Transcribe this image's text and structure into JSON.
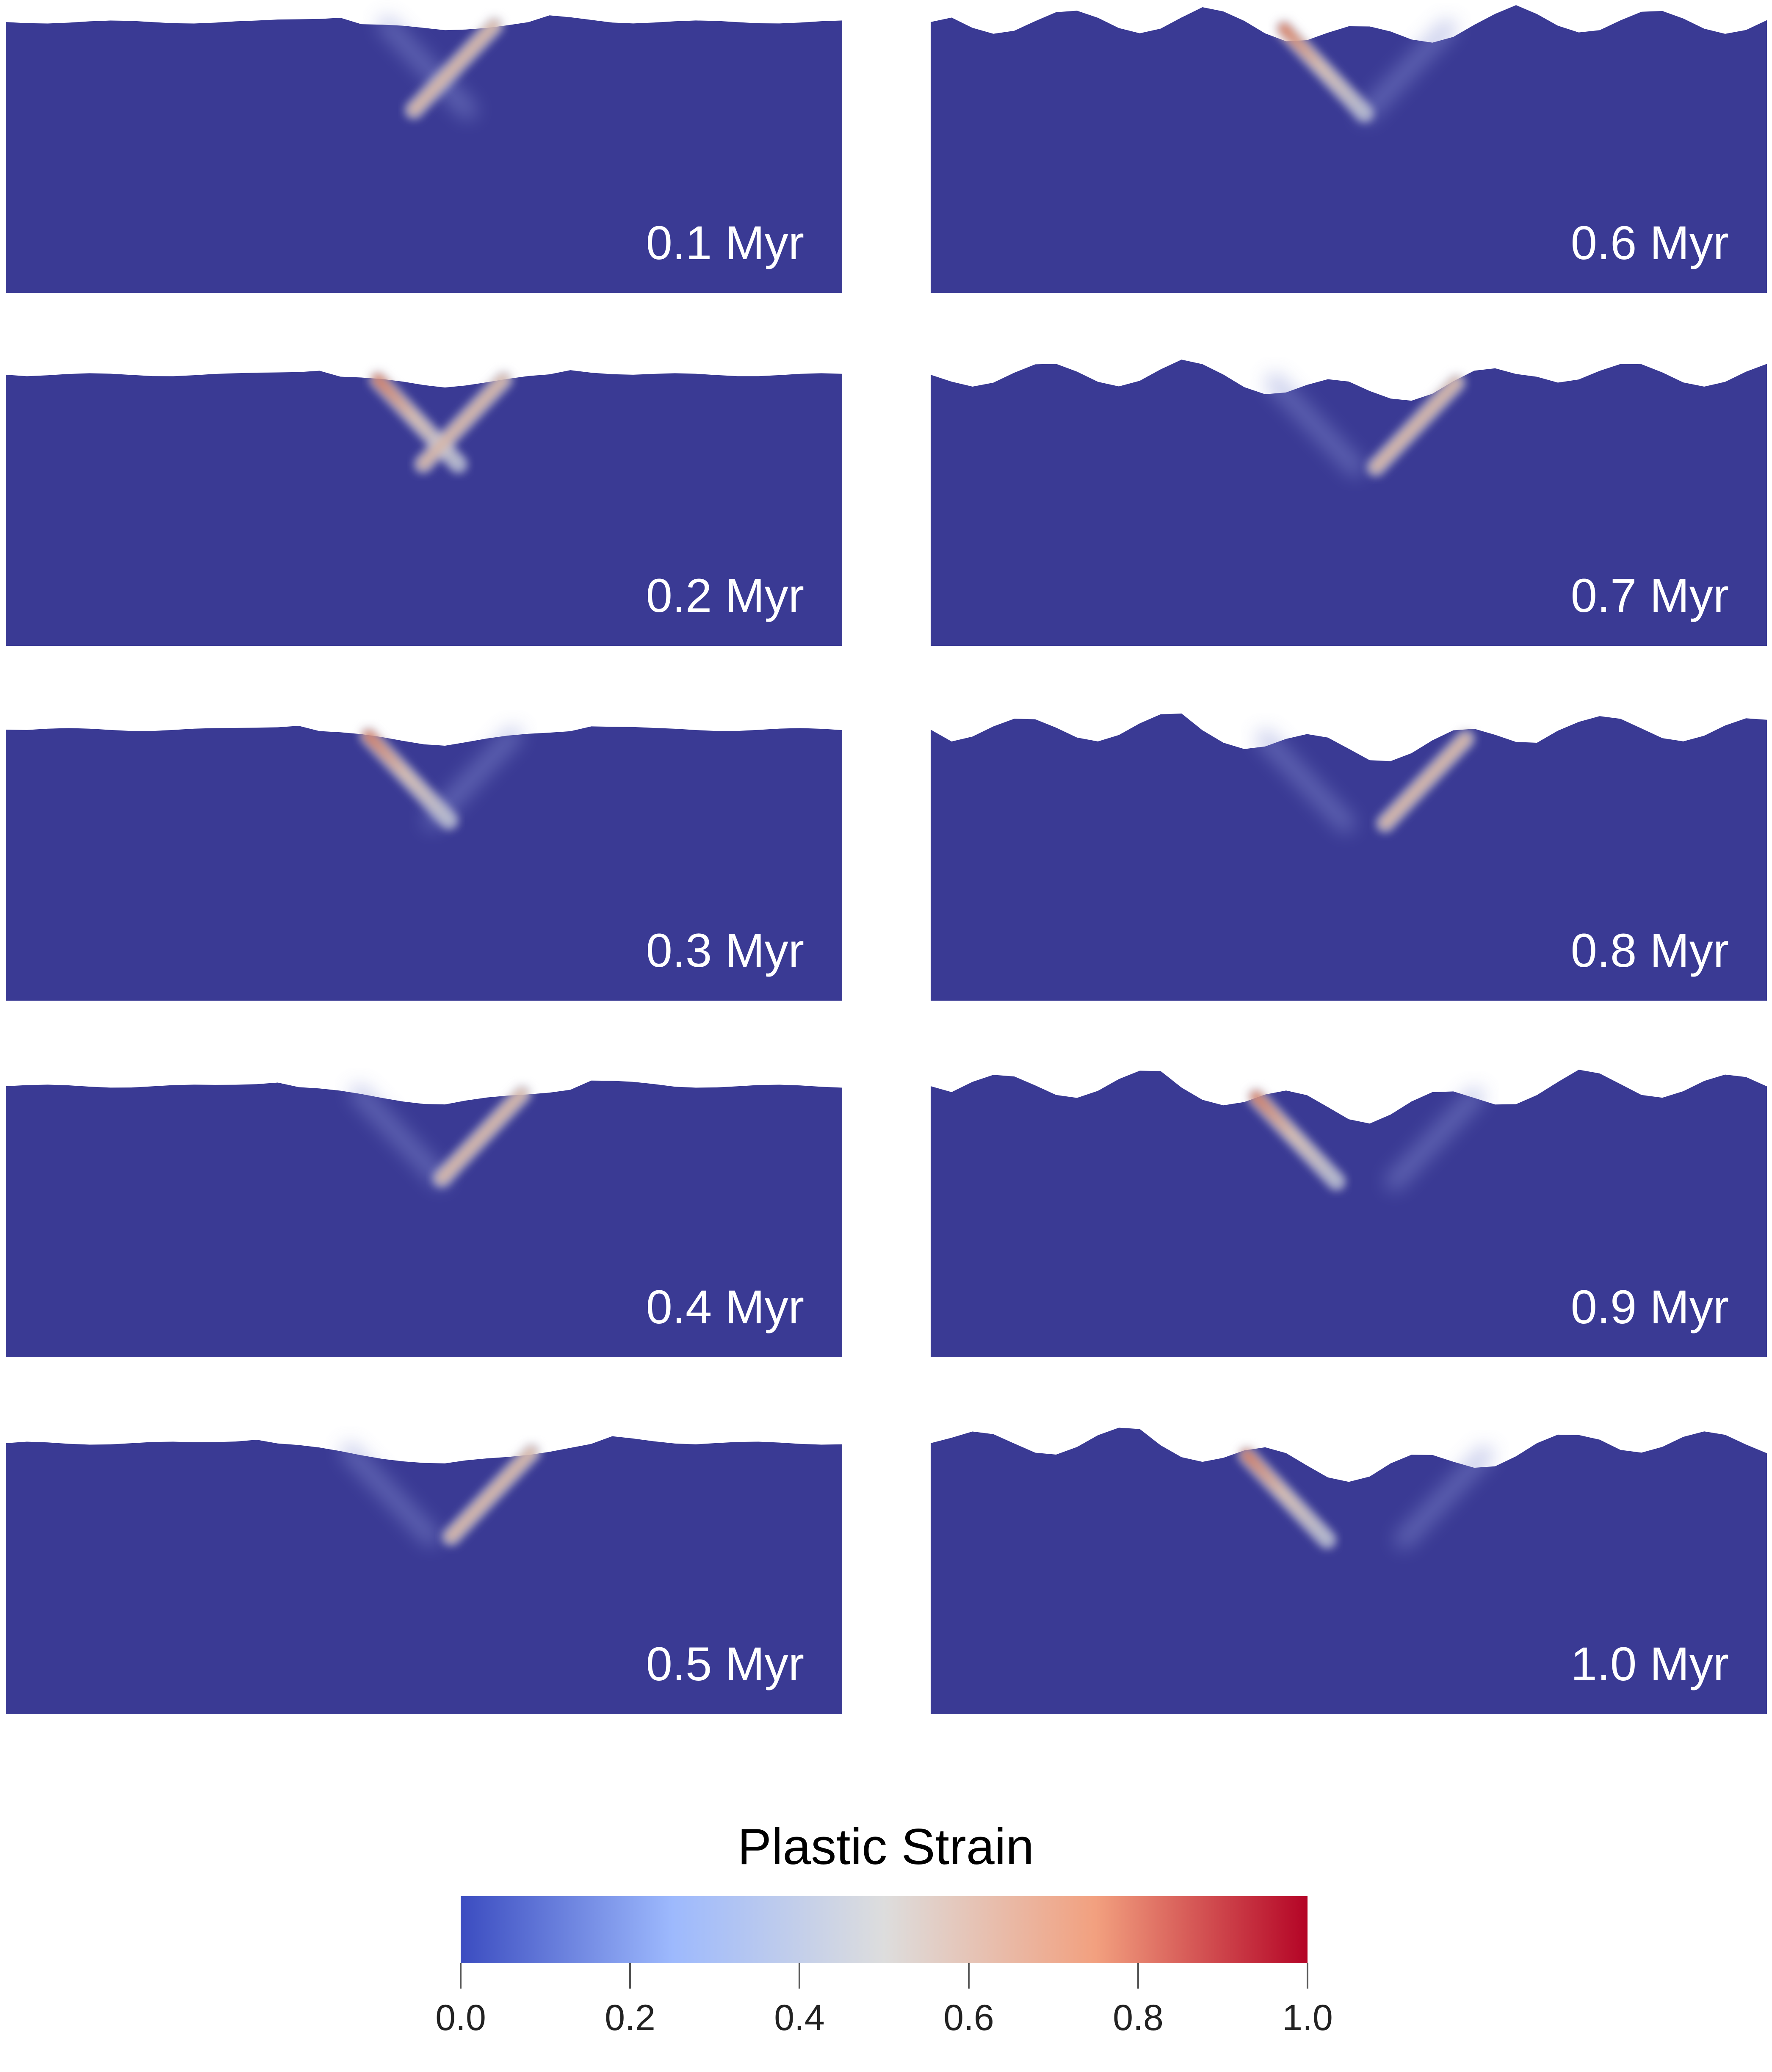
{
  "panels": [
    {
      "label": "0.1 Myr",
      "shear": "right"
    },
    {
      "label": "0.2 Myr",
      "shear": "both"
    },
    {
      "label": "0.3 Myr",
      "shear": "left"
    },
    {
      "label": "0.4 Myr",
      "shear": "right"
    },
    {
      "label": "0.5 Myr",
      "shear": "right"
    },
    {
      "label": "0.6 Myr",
      "shear": "left"
    },
    {
      "label": "0.7 Myr",
      "shear": "right"
    },
    {
      "label": "0.8 Myr",
      "shear": "right"
    },
    {
      "label": "0.9 Myr",
      "shear": "left"
    },
    {
      "label": "1.0 Myr",
      "shear": "left"
    }
  ],
  "colorbar": {
    "title": "Plastic Strain",
    "ticks": [
      "0.0",
      "0.2",
      "0.4",
      "0.6",
      "0.8",
      "1.0"
    ],
    "range": [
      0.0,
      1.0
    ],
    "colormap": [
      "#3b4cc0",
      "#9db9fd",
      "#dddddd",
      "#f2a07f",
      "#b40426"
    ]
  },
  "colors": {
    "domain": "#3a3a94",
    "shear_band_strain": 0.62,
    "shear_band_peak_strain": 0.85
  }
}
